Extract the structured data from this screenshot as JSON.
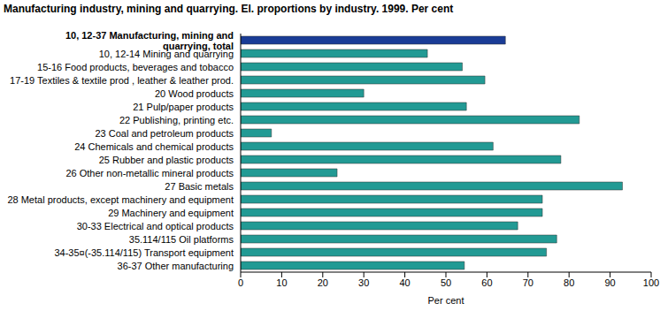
{
  "chart_data": {
    "type": "bar",
    "orientation": "horizontal",
    "title": "Manufacturing industry, mining and quarrying. El. proportions by industry. 1999. Per cent",
    "x_label": "Per cent",
    "categories": [
      "10, 12-37 Manufacturing, mining and quarrying, total",
      "10, 12-14 Mining and quarrying",
      "15-16 Food products, beverages and tobacco",
      "17-19 Textiles & textile prod , leather & leather prod.",
      "20 Wood products",
      "21 Pulp/paper products",
      "22 Publishing, printing etc.",
      "23 Coal and petroleum products",
      "24 Chemicals and chemical products",
      "25 Rubber and plastic products",
      "26 Other non-metallic mineral products",
      "27 Basic metals",
      "28 Metal products, except machinery and equipment",
      "29 Machinery and equipment",
      "30-33 Electrical and optical products",
      "35.114/115 Oil platforms",
      "34-35¤(-35.114/115) Transport equipment",
      "36-37 Other manufacturing"
    ],
    "values": [
      64.5,
      45.5,
      54,
      59.5,
      30,
      55,
      82.5,
      7.5,
      61.5,
      78,
      23.5,
      93,
      73.5,
      73.5,
      67.5,
      77,
      74.5,
      54.5
    ],
    "colors": [
      "#1a3c96",
      "#229a94",
      "#229a94",
      "#229a94",
      "#229a94",
      "#229a94",
      "#229a94",
      "#229a94",
      "#229a94",
      "#229a94",
      "#229a94",
      "#229a94",
      "#229a94",
      "#229a94",
      "#229a94",
      "#229a94",
      "#229a94",
      "#229a94"
    ],
    "xlim": [
      0,
      100
    ],
    "xticks": [
      0,
      10,
      20,
      30,
      40,
      50,
      60,
      70,
      80,
      90,
      100
    ],
    "grid": false
  }
}
